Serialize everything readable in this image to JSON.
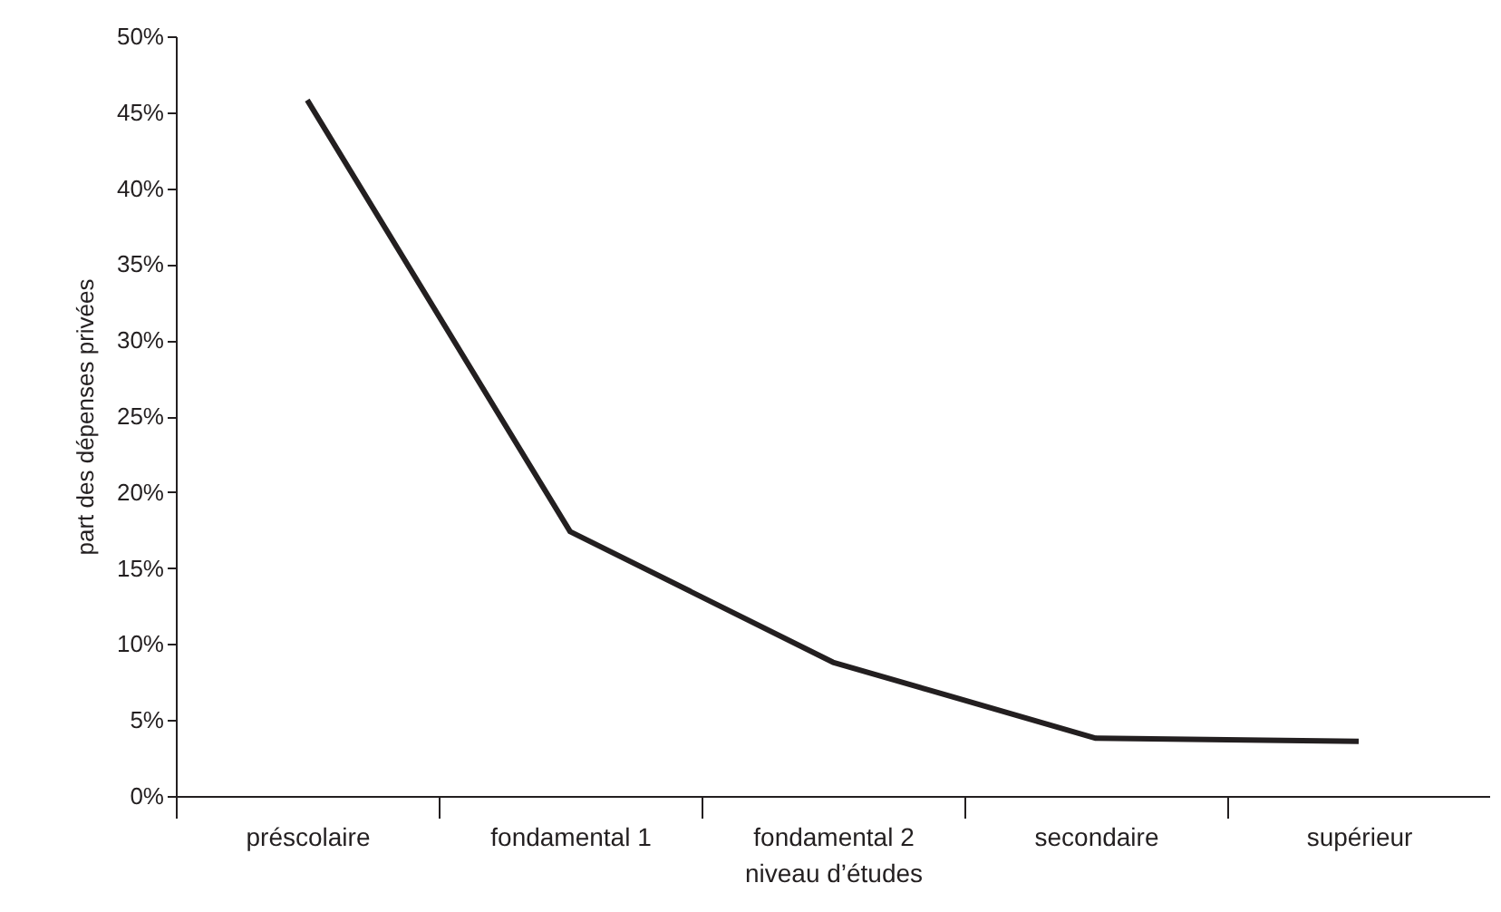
{
  "chart_data": {
    "type": "line",
    "xlabel": "niveau d’études",
    "ylabel": "part des dépenses privées",
    "categories": [
      "préscolaire",
      "fondamental 1",
      "fondamental 2",
      "secondaire",
      "supérieur"
    ],
    "series": [
      {
        "color": "#231f20",
        "values": [
          45.8,
          17.4,
          8.8,
          3.8,
          3.6
        ]
      }
    ],
    "ylim": [
      0,
      50
    ],
    "yticks": [
      {
        "value": 0,
        "label": "0%"
      },
      {
        "value": 5,
        "label": "5%"
      },
      {
        "value": 10,
        "label": "10%"
      },
      {
        "value": 15,
        "label": "15%"
      },
      {
        "value": 20,
        "label": "20%"
      },
      {
        "value": 25,
        "label": "25%"
      },
      {
        "value": 30,
        "label": "30%"
      },
      {
        "value": 35,
        "label": "35%"
      },
      {
        "value": 40,
        "label": "40%"
      },
      {
        "value": 45,
        "label": "45%"
      },
      {
        "value": 50,
        "label": "50%"
      }
    ],
    "grid": false,
    "marker": "none",
    "line_style": "solid"
  }
}
